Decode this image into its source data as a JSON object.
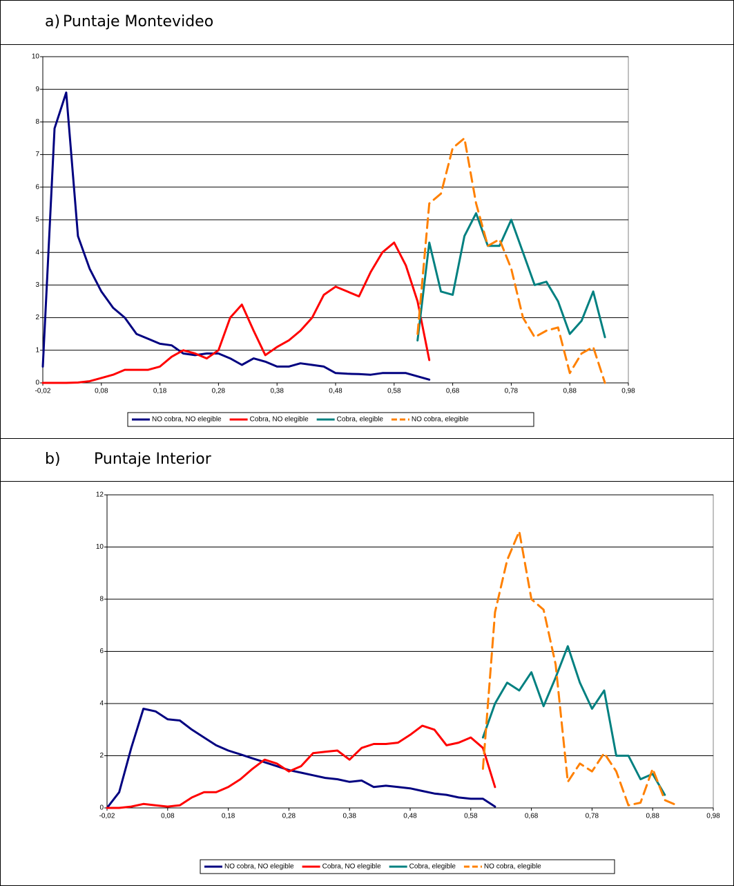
{
  "headings": [
    {
      "label": "a)",
      "text": "Puntaje Montevideo"
    },
    {
      "label": "b)",
      "text": "Puntaje Interior"
    }
  ],
  "chart_data": [
    {
      "type": "line",
      "x": [
        -0.02,
        0.0,
        0.02,
        0.04,
        0.06,
        0.08,
        0.1,
        0.12,
        0.14,
        0.16,
        0.18,
        0.2,
        0.22,
        0.24,
        0.26,
        0.28,
        0.3,
        0.32,
        0.34,
        0.36,
        0.38,
        0.4,
        0.42,
        0.44,
        0.46,
        0.48,
        0.5,
        0.52,
        0.54,
        0.56,
        0.58,
        0.6,
        0.62,
        0.64,
        0.66,
        0.68,
        0.7,
        0.72,
        0.74,
        0.76,
        0.78,
        0.8,
        0.82,
        0.84,
        0.86,
        0.88,
        0.9,
        0.92,
        0.94
      ],
      "xlim": [
        -0.02,
        0.98
      ],
      "xticks": [
        {
          "value": -0.02,
          "label": "-0,02"
        },
        {
          "value": 0.08,
          "label": "0,08"
        },
        {
          "value": 0.18,
          "label": "0,18"
        },
        {
          "value": 0.28,
          "label": "0,28"
        },
        {
          "value": 0.38,
          "label": "0,38"
        },
        {
          "value": 0.48,
          "label": "0,48"
        },
        {
          "value": 0.58,
          "label": "0,58"
        },
        {
          "value": 0.68,
          "label": "0,68"
        },
        {
          "value": 0.78,
          "label": "0,78"
        },
        {
          "value": 0.88,
          "label": "0,88"
        },
        {
          "value": 0.98,
          "label": "0,98"
        }
      ],
      "ylim": [
        0,
        10
      ],
      "yticks": [
        0,
        1,
        2,
        3,
        4,
        5,
        6,
        7,
        8,
        9,
        10
      ],
      "grid": true,
      "series": [
        {
          "name": "NO cobra, NO elegible",
          "color": "#000080",
          "dashed": false,
          "values": [
            0.5,
            7.8,
            8.9,
            4.5,
            3.5,
            2.8,
            2.3,
            2.0,
            1.5,
            1.35,
            1.2,
            1.15,
            0.9,
            0.85,
            0.9,
            0.9,
            0.75,
            0.55,
            0.75,
            0.65,
            0.5,
            0.5,
            0.6,
            0.55,
            0.5,
            0.3,
            0.28,
            0.27,
            0.25,
            0.3,
            0.3,
            0.3,
            0.2,
            0.1,
            null,
            null,
            null,
            null,
            null,
            null,
            null,
            null,
            null,
            null,
            null,
            null,
            null,
            null,
            null
          ]
        },
        {
          "name": "Cobra, NO elegible",
          "color": "#ff0000",
          "dashed": false,
          "values": [
            0,
            0,
            0,
            0.01,
            0.05,
            0.15,
            0.25,
            0.4,
            0.4,
            0.4,
            0.5,
            0.8,
            1.0,
            0.9,
            0.75,
            1.0,
            2.0,
            2.4,
            1.6,
            0.85,
            1.1,
            1.3,
            1.6,
            2.0,
            2.7,
            2.95,
            2.8,
            2.65,
            3.4,
            4.0,
            4.3,
            3.6,
            2.5,
            0.7,
            null,
            null,
            null,
            null,
            null,
            null,
            null,
            null,
            null,
            null,
            null,
            null,
            null,
            null,
            null
          ]
        },
        {
          "name": "Cobra, elegible",
          "color": "#008080",
          "dashed": false,
          "values": [
            null,
            null,
            null,
            null,
            null,
            null,
            null,
            null,
            null,
            null,
            null,
            null,
            null,
            null,
            null,
            null,
            null,
            null,
            null,
            null,
            null,
            null,
            null,
            null,
            null,
            null,
            null,
            null,
            null,
            null,
            null,
            null,
            1.3,
            4.3,
            2.8,
            2.7,
            4.5,
            5.2,
            4.2,
            4.2,
            5.0,
            4.0,
            3.0,
            3.1,
            2.5,
            1.5,
            1.9,
            2.8,
            1.4
          ]
        },
        {
          "name": "NO cobra, elegible",
          "color": "#ff8000",
          "dashed": true,
          "values": [
            null,
            null,
            null,
            null,
            null,
            null,
            null,
            null,
            null,
            null,
            null,
            null,
            null,
            null,
            null,
            null,
            null,
            null,
            null,
            null,
            null,
            null,
            null,
            null,
            null,
            null,
            null,
            null,
            null,
            null,
            null,
            null,
            1.5,
            5.5,
            5.8,
            7.2,
            7.5,
            5.5,
            4.2,
            4.4,
            3.5,
            2.0,
            1.4,
            1.6,
            1.7,
            0.3,
            0.9,
            1.1,
            0
          ]
        }
      ]
    },
    {
      "type": "line",
      "x": [
        -0.02,
        0.0,
        0.02,
        0.04,
        0.06,
        0.08,
        0.1,
        0.12,
        0.14,
        0.16,
        0.18,
        0.2,
        0.22,
        0.24,
        0.26,
        0.28,
        0.3,
        0.32,
        0.34,
        0.36,
        0.38,
        0.4,
        0.42,
        0.44,
        0.46,
        0.48,
        0.5,
        0.52,
        0.54,
        0.56,
        0.58,
        0.6,
        0.62,
        0.64,
        0.66,
        0.68,
        0.7,
        0.72,
        0.74,
        0.76,
        0.78,
        0.8,
        0.82,
        0.84,
        0.86,
        0.88,
        0.9,
        0.92
      ],
      "xlim": [
        -0.02,
        0.98
      ],
      "xticks": [
        {
          "value": -0.02,
          "label": "-0,02"
        },
        {
          "value": 0.08,
          "label": "0,08"
        },
        {
          "value": 0.18,
          "label": "0,18"
        },
        {
          "value": 0.28,
          "label": "0,28"
        },
        {
          "value": 0.38,
          "label": "0,38"
        },
        {
          "value": 0.48,
          "label": "0,48"
        },
        {
          "value": 0.58,
          "label": "0,58"
        },
        {
          "value": 0.68,
          "label": "0,68"
        },
        {
          "value": 0.78,
          "label": "0,78"
        },
        {
          "value": 0.88,
          "label": "0,88"
        },
        {
          "value": 0.98,
          "label": "0,98"
        }
      ],
      "ylim": [
        0,
        12
      ],
      "yticks": [
        0,
        2,
        4,
        6,
        8,
        10,
        12
      ],
      "grid": true,
      "series": [
        {
          "name": "NO cobra, NO elegible",
          "color": "#000080",
          "dashed": false,
          "values": [
            0,
            0.6,
            2.3,
            3.8,
            3.7,
            3.4,
            3.35,
            3.0,
            2.7,
            2.4,
            2.2,
            2.05,
            1.9,
            1.75,
            1.6,
            1.45,
            1.35,
            1.25,
            1.15,
            1.1,
            1.0,
            1.05,
            0.8,
            0.85,
            0.8,
            0.75,
            0.65,
            0.55,
            0.5,
            0.4,
            0.35,
            0.35,
            0.05,
            null,
            null,
            null,
            null,
            null,
            null,
            null,
            null,
            null,
            null,
            null,
            null,
            null,
            null,
            null
          ]
        },
        {
          "name": "Cobra, NO elegible",
          "color": "#ff0000",
          "dashed": false,
          "values": [
            0,
            0,
            0.05,
            0.15,
            0.1,
            0.05,
            0.1,
            0.4,
            0.6,
            0.6,
            0.8,
            1.1,
            1.5,
            1.85,
            1.7,
            1.4,
            1.6,
            2.1,
            2.15,
            2.2,
            1.85,
            2.3,
            2.45,
            2.45,
            2.5,
            2.8,
            3.15,
            3.0,
            2.4,
            2.5,
            2.7,
            2.3,
            0.8,
            null,
            null,
            null,
            null,
            null,
            null,
            null,
            null,
            null,
            null,
            null,
            null,
            null,
            null,
            null
          ]
        },
        {
          "name": "Cobra, elegible",
          "color": "#008080",
          "dashed": false,
          "values": [
            null,
            null,
            null,
            null,
            null,
            null,
            null,
            null,
            null,
            null,
            null,
            null,
            null,
            null,
            null,
            null,
            null,
            null,
            null,
            null,
            null,
            null,
            null,
            null,
            null,
            null,
            null,
            null,
            null,
            null,
            null,
            2.7,
            4.0,
            4.8,
            4.5,
            5.2,
            3.9,
            5.0,
            6.2,
            4.8,
            3.8,
            4.5,
            2.0,
            2.0,
            1.1,
            1.3,
            0.5,
            null
          ]
        },
        {
          "name": "NO cobra, elegible",
          "color": "#ff8000",
          "dashed": true,
          "values": [
            null,
            null,
            null,
            null,
            null,
            null,
            null,
            null,
            null,
            null,
            null,
            null,
            null,
            null,
            null,
            null,
            null,
            null,
            null,
            null,
            null,
            null,
            null,
            null,
            null,
            null,
            null,
            null,
            null,
            null,
            null,
            1.5,
            7.5,
            9.5,
            10.6,
            8.0,
            7.6,
            5.5,
            1.0,
            1.7,
            1.4,
            2.1,
            1.4,
            0.1,
            0.2,
            1.5,
            0.3,
            0.1
          ]
        }
      ]
    }
  ]
}
